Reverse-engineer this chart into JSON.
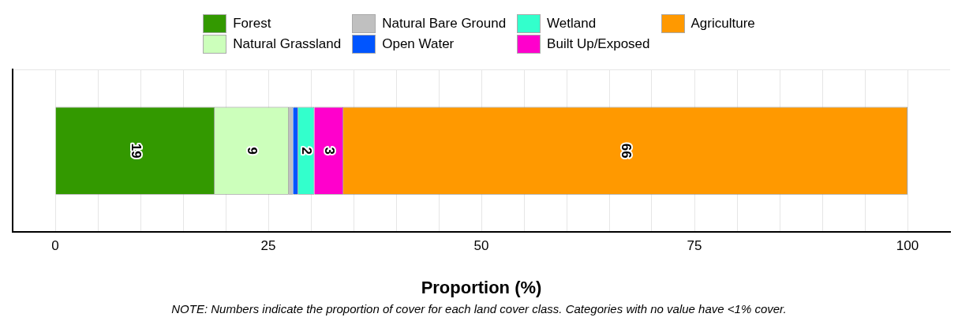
{
  "chart_data": {
    "type": "bar",
    "orientation": "horizontal",
    "stacked": true,
    "xlabel": "Proportion (%)",
    "categories": [
      null
    ],
    "series": [
      {
        "name": "Forest",
        "color": "#339900",
        "values": [
          18.7
        ],
        "value_labels": [
          "19"
        ]
      },
      {
        "name": "Natural Grassland",
        "color": "#ccffbb",
        "values": [
          8.7
        ],
        "value_labels": [
          "9"
        ]
      },
      {
        "name": "Natural Bare Ground",
        "color": "#c0c0c0",
        "values": [
          0.5
        ],
        "value_labels": [
          null
        ]
      },
      {
        "name": "Open Water",
        "color": "#0055ff",
        "values": [
          0.6
        ],
        "value_labels": [
          null
        ]
      },
      {
        "name": "Wetland",
        "color": "#33ffcc",
        "values": [
          1.9
        ],
        "value_labels": [
          "2"
        ]
      },
      {
        "name": "Built Up/Exposed",
        "color": "#ff00cc",
        "values": [
          3.4
        ],
        "value_labels": [
          "3"
        ]
      },
      {
        "name": "Agriculture",
        "color": "#ff9900",
        "values": [
          66.2
        ],
        "value_labels": [
          "66"
        ]
      }
    ],
    "xlim": [
      -5,
      105
    ],
    "xticks": [
      0,
      {
        "value": 5,
        "label": null
      },
      {
        "value": 10,
        "label": null
      },
      {
        "value": 15,
        "label": null
      },
      {
        "value": 20,
        "label": null
      },
      25,
      {
        "value": 30,
        "label": null
      },
      {
        "value": 35,
        "label": null
      },
      {
        "value": 40,
        "label": null
      },
      {
        "value": 45,
        "label": null
      },
      50,
      {
        "value": 55,
        "label": null
      },
      {
        "value": 60,
        "label": null
      },
      {
        "value": 65,
        "label": null
      },
      {
        "value": 70,
        "label": null
      },
      75,
      {
        "value": 80,
        "label": null
      },
      {
        "value": 85,
        "label": null
      },
      {
        "value": 90,
        "label": null
      },
      {
        "value": 95,
        "label": null
      },
      100
    ],
    "grid": true,
    "legend": "top",
    "annotations": [
      "NOTE: Numbers indicate the proportion of cover for each land cover class. Categories with no value have <1% cover."
    ]
  }
}
